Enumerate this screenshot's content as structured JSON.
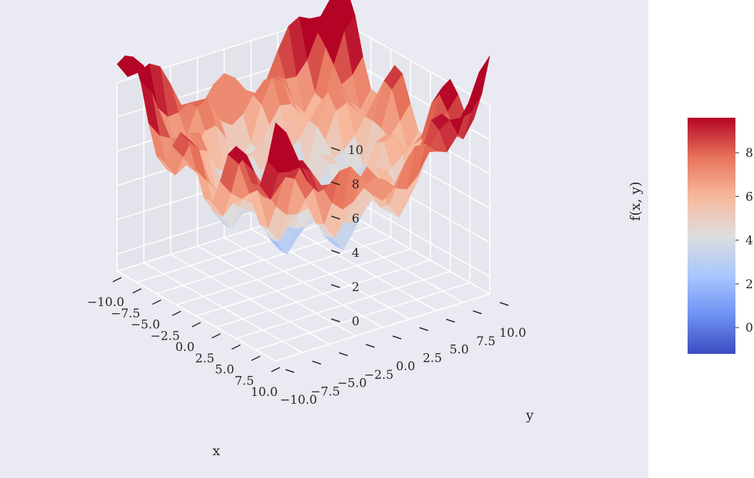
{
  "chart_data": {
    "type": "surface3d",
    "title": "",
    "xlabel": "x",
    "ylabel": "y",
    "zlabel": "f(x, y)",
    "x_range": [
      -10,
      10
    ],
    "y_range": [
      -10,
      10
    ],
    "z_range": [
      -1,
      10
    ],
    "x_ticks": [
      -10,
      -7.5,
      -5,
      -2.5,
      0,
      2.5,
      5,
      7.5,
      10
    ],
    "x_tick_labels": [
      "−10.0",
      "−7.5",
      "−5.0",
      "−2.5",
      "0.0",
      "2.5",
      "5.0",
      "7.5",
      "10.0"
    ],
    "y_ticks": [
      -10,
      -7.5,
      -5,
      -2.5,
      0,
      2.5,
      5,
      7.5,
      10
    ],
    "y_tick_labels": [
      "−10.0",
      "−7.5",
      "−5.0",
      "−2.5",
      "0.0",
      "2.5",
      "5.0",
      "7.5",
      "10.0"
    ],
    "z_ticks": [
      0,
      2,
      4,
      6,
      8,
      10
    ],
    "z_tick_labels": [
      "0",
      "2",
      "4",
      "6",
      "8",
      "10"
    ],
    "surface_function": "0.045*(x^2+y^2) + 2*sin(x)*cos(y) + 3",
    "grid_steps": 20,
    "colormap": "coolwarm",
    "colorbar": {
      "range": [
        -1.2,
        9.6
      ],
      "ticks": [
        0,
        2,
        4,
        6,
        8
      ],
      "tick_labels": [
        "0",
        "2",
        "4",
        "6",
        "8"
      ],
      "colors": [
        "#3b4cc0",
        "#6f92f3",
        "#aac7fd",
        "#dddddd",
        "#f7b89c",
        "#e7745b",
        "#b40426"
      ]
    }
  }
}
